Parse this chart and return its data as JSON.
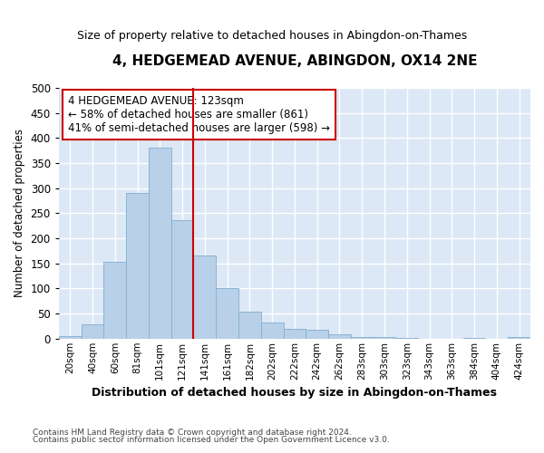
{
  "title": "4, HEDGEMEAD AVENUE, ABINGDON, OX14 2NE",
  "subtitle": "Size of property relative to detached houses in Abingdon-on-Thames",
  "xlabel": "Distribution of detached houses by size in Abingdon-on-Thames",
  "ylabel": "Number of detached properties",
  "footnote1": "Contains HM Land Registry data © Crown copyright and database right 2024.",
  "footnote2": "Contains public sector information licensed under the Open Government Licence v3.0.",
  "bar_labels": [
    "20sqm",
    "40sqm",
    "60sqm",
    "81sqm",
    "101sqm",
    "121sqm",
    "141sqm",
    "161sqm",
    "182sqm",
    "202sqm",
    "222sqm",
    "242sqm",
    "262sqm",
    "283sqm",
    "303sqm",
    "323sqm",
    "343sqm",
    "363sqm",
    "384sqm",
    "404sqm",
    "424sqm"
  ],
  "bar_values": [
    5,
    28,
    153,
    290,
    380,
    237,
    165,
    100,
    53,
    32,
    20,
    17,
    8,
    4,
    3,
    2,
    0,
    0,
    1,
    0,
    3
  ],
  "bar_color": "#b8d0e8",
  "bar_edgecolor": "#8ab4d4",
  "plot_bg_color": "#dce8f5",
  "fig_bg_color": "#ffffff",
  "grid_color": "#ffffff",
  "annotation_text": "4 HEDGEMEAD AVENUE: 123sqm\n← 58% of detached houses are smaller (861)\n41% of semi-detached houses are larger (598) →",
  "annotation_box_facecolor": "#ffffff",
  "annotation_box_edgecolor": "#cc0000",
  "vline_x": 5.5,
  "vline_color": "#cc0000",
  "ylim": [
    0,
    500
  ],
  "yticks": [
    0,
    50,
    100,
    150,
    200,
    250,
    300,
    350,
    400,
    450,
    500
  ]
}
